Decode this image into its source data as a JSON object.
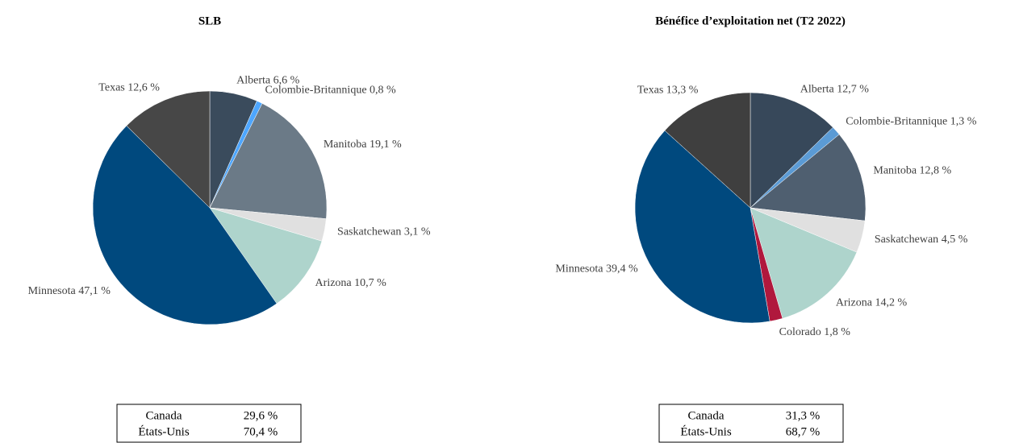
{
  "chart_data": [
    {
      "type": "pie",
      "title": "SLB",
      "categories": [
        "Alberta",
        "Colombie-Britannique",
        "Manitoba",
        "Saskatchewan",
        "Arizona",
        "Minnesota",
        "Texas"
      ],
      "values": [
        6.6,
        0.8,
        19.1,
        3.1,
        10.7,
        47.1,
        12.6
      ],
      "value_labels": [
        "6,6 %",
        "0,8 %",
        "19,1 %",
        "3,1 %",
        "10,7 %",
        "47,1 %",
        "12,6 %"
      ],
      "colors": [
        "#3a4b5c",
        "#4da6ff",
        "#6b7a87",
        "#e0e0e0",
        "#aed4cc",
        "#00497e",
        "#474747"
      ],
      "summary_rows": [
        [
          "Canada",
          "29,6 %"
        ],
        [
          "États-Unis",
          "70,4 %"
        ]
      ]
    },
    {
      "type": "pie",
      "title": "Bénéfice d’exploitation net (T2 2022)",
      "categories": [
        "Alberta",
        "Colombie-Britannique",
        "Manitoba",
        "Saskatchewan",
        "Arizona",
        "Colorado",
        "Minnesota",
        "Texas"
      ],
      "values": [
        12.7,
        1.3,
        12.8,
        4.5,
        14.2,
        1.8,
        39.4,
        13.3
      ],
      "value_labels": [
        "12,7 %",
        "1,3 %",
        "12,8 %",
        "4,5 %",
        "14,2 %",
        "1,8 %",
        "39,4 %",
        "13,3 %"
      ],
      "colors": [
        "#37485a",
        "#5b9bd5",
        "#4f5f70",
        "#e0e0e0",
        "#aed4cc",
        "#b0183d",
        "#00497e",
        "#3f3f3f"
      ],
      "summary_rows": [
        [
          "Canada",
          "31,3 %"
        ],
        [
          "États-Unis",
          "68,7 %"
        ]
      ]
    }
  ]
}
